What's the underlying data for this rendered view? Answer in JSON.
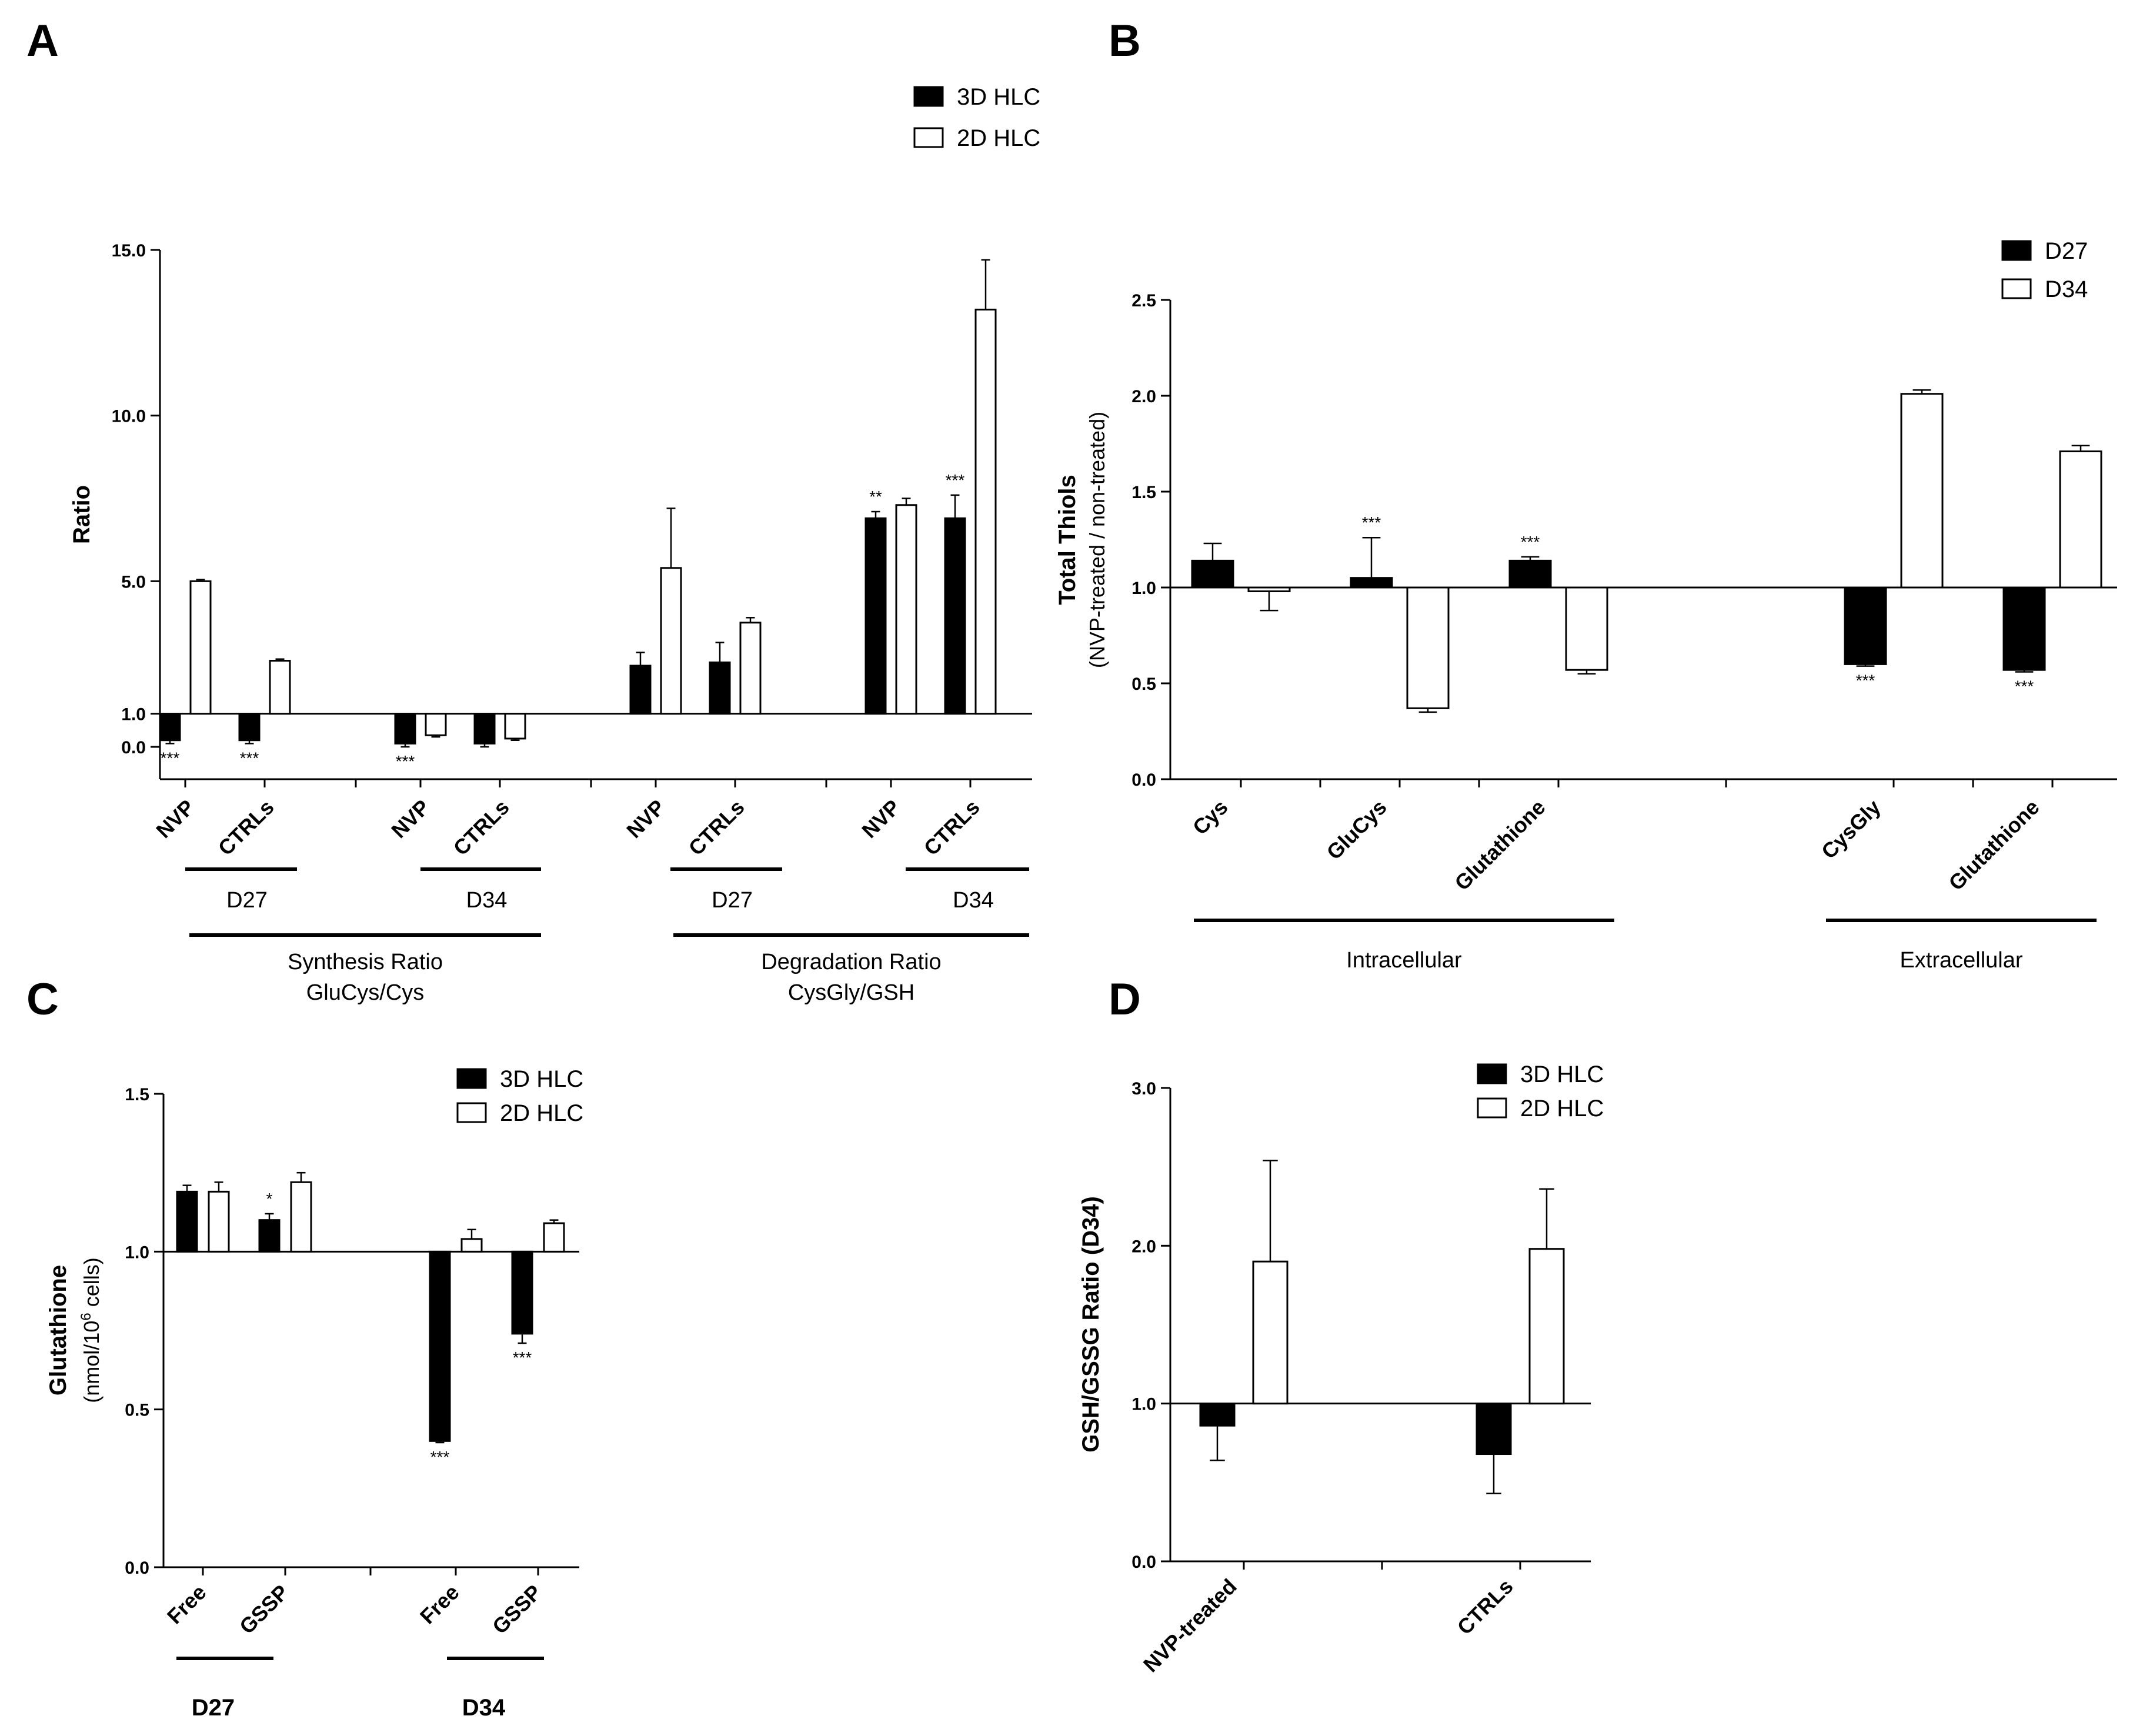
{
  "panels": [
    {
      "id": "A",
      "letter": "A",
      "ylabel": "Ratio",
      "yticks": [
        {
          "v": 0,
          "t": "0.0"
        },
        {
          "v": 1,
          "t": "1.0"
        },
        {
          "v": 5,
          "t": "5.0"
        },
        {
          "v": 10,
          "t": "10.0"
        },
        {
          "v": 15,
          "t": "15.0"
        }
      ],
      "legend": [
        "3D HLC",
        "2D HLC"
      ],
      "groups": [
        {
          "cats": [
            {
              "label": "NVP",
              "bars": [
                {
                  "v": 0.2,
                  "e": 0.1,
                  "star": "***"
                },
                {
                  "v": 5.0,
                  "e": 0.05
                }
              ]
            },
            {
              "label": "CTRLs",
              "bars": [
                {
                  "v": 0.2,
                  "e": 0.1,
                  "star": "***"
                },
                {
                  "v": 2.6,
                  "e": 0.05
                }
              ]
            }
          ]
        },
        {
          "cats": [
            {
              "label": "NVP",
              "bars": [
                {
                  "v": 0.1,
                  "e": 0.1,
                  "star": "***"
                },
                {
                  "v": 0.35,
                  "e": 0.05
                }
              ]
            },
            {
              "label": "CTRLs",
              "bars": [
                {
                  "v": 0.1,
                  "e": 0.1
                },
                {
                  "v": 0.25,
                  "e": 0.05
                }
              ]
            }
          ]
        },
        {
          "cats": [
            {
              "label": "NVP",
              "bars": [
                {
                  "v": 2.45,
                  "e": 0.4
                },
                {
                  "v": 5.4,
                  "e": 1.8
                }
              ]
            },
            {
              "label": "CTRLs",
              "bars": [
                {
                  "v": 2.55,
                  "e": 0.6
                },
                {
                  "v": 3.75,
                  "e": 0.15
                }
              ]
            }
          ]
        },
        {
          "cats": [
            {
              "label": "NVP",
              "bars": [
                {
                  "v": 6.9,
                  "e": 0.2,
                  "star": "**"
                },
                {
                  "v": 7.3,
                  "e": 0.2
                }
              ]
            },
            {
              "label": "CTRLs",
              "bars": [
                {
                  "v": 6.9,
                  "e": 0.7,
                  "star": "***"
                },
                {
                  "v": 13.2,
                  "e": 1.5
                }
              ]
            }
          ]
        }
      ],
      "subgroups": [
        "D27",
        "D34",
        "D27",
        "D34"
      ],
      "supergroups": [
        [
          "Synthesis Ratio",
          "GluCys/Cys"
        ],
        [
          "Degradation Ratio",
          "CysGly/GSH"
        ]
      ]
    },
    {
      "id": "B",
      "letter": "B",
      "ylabel": "Total Thiols",
      "ylabel2": "(NVP-treated / non-treated)",
      "yticks": [
        {
          "v": 0,
          "t": "0.0"
        },
        {
          "v": 0.5,
          "t": "0.5"
        },
        {
          "v": 1.0,
          "t": "1.0"
        },
        {
          "v": 1.5,
          "t": "1.5"
        },
        {
          "v": 2.0,
          "t": "2.0"
        },
        {
          "v": 2.5,
          "t": "2.5"
        }
      ],
      "legend": [
        "D27",
        "D34"
      ],
      "cats": [
        {
          "label": "Cys",
          "bars": [
            {
              "v": 1.14,
              "e": 0.09
            },
            {
              "v": 0.98,
              "e": 0.1
            }
          ]
        },
        {
          "label": "GluCys",
          "bars": [
            {
              "v": 1.05,
              "e": 0.21,
              "star": "***"
            },
            {
              "v": 0.37,
              "e": 0.02
            }
          ]
        },
        {
          "label": "Glutathione",
          "bars": [
            {
              "v": 1.14,
              "e": 0.02,
              "star": "***"
            },
            {
              "v": 0.57,
              "e": 0.02
            }
          ]
        },
        {
          "label": "CysGly",
          "bars": [
            {
              "v": 0.6,
              "e": 0.01,
              "star": "***"
            },
            {
              "v": 2.01,
              "e": 0.02
            }
          ]
        },
        {
          "label": "Glutathione",
          "bars": [
            {
              "v": 0.57,
              "e": 0.01,
              "star": "***"
            },
            {
              "v": 1.71,
              "e": 0.03
            }
          ]
        }
      ],
      "supergroups": [
        "Intracellular",
        "Extracellular"
      ]
    },
    {
      "id": "C",
      "letter": "C",
      "ylabel": "Glutathione",
      "ylabel2_pre": "(nmol/10",
      "ylabel2_sup": "6",
      "ylabel2_post": " cells)",
      "yticks": [
        {
          "v": 0,
          "t": "0.0"
        },
        {
          "v": 0.5,
          "t": "0.5"
        },
        {
          "v": 1.0,
          "t": "1.0"
        },
        {
          "v": 1.5,
          "t": "1.5"
        }
      ],
      "legend": [
        "3D HLC",
        "2D HLC"
      ],
      "cats": [
        {
          "label": "Free",
          "bars": [
            {
              "v": 1.19,
              "e": 0.02
            },
            {
              "v": 1.19,
              "e": 0.03
            }
          ]
        },
        {
          "label": "GSSP",
          "bars": [
            {
              "v": 1.1,
              "e": 0.02,
              "star": "*"
            },
            {
              "v": 1.22,
              "e": 0.03
            }
          ]
        },
        {
          "label": "Free",
          "bars": [
            {
              "v": 0.4,
              "e": 0.005,
              "star": "***"
            },
            {
              "v": 1.04,
              "e": 0.03
            }
          ]
        },
        {
          "label": "GSSP",
          "bars": [
            {
              "v": 0.74,
              "e": 0.03,
              "star": "***"
            },
            {
              "v": 1.09,
              "e": 0.01
            }
          ]
        }
      ],
      "subgroups": [
        "D27",
        "D34"
      ]
    },
    {
      "id": "D",
      "letter": "D",
      "ylabel": "GSH/GSSG Ratio (D34)",
      "yticks": [
        {
          "v": 0,
          "t": "0.0"
        },
        {
          "v": 1.0,
          "t": "1.0"
        },
        {
          "v": 2.0,
          "t": "2.0"
        },
        {
          "v": 3.0,
          "t": "3.0"
        }
      ],
      "legend": [
        "3D HLC",
        "2D HLC"
      ],
      "cats": [
        {
          "label": "NVP-treated",
          "bars": [
            {
              "v": 0.86,
              "e": 0.22
            },
            {
              "v": 1.9,
              "e": 0.64
            }
          ]
        },
        {
          "label": "CTRLs",
          "bars": [
            {
              "v": 0.68,
              "e": 0.25
            },
            {
              "v": 1.98,
              "e": 0.38
            }
          ]
        }
      ]
    }
  ],
  "chart_data": [
    {
      "type": "bar",
      "panel": "A",
      "ylabel": "Ratio",
      "ylim": [
        0,
        15
      ],
      "baseline": 1.0,
      "categories": [
        "NVP (Synthesis D27)",
        "CTRLs (Synthesis D27)",
        "NVP (Synthesis D34)",
        "CTRLs (Synthesis D34)",
        "NVP (Degradation D27)",
        "CTRLs (Degradation D27)",
        "NVP (Degradation D34)",
        "CTRLs (Degradation D34)"
      ],
      "series": [
        {
          "name": "3D HLC",
          "values": [
            0.2,
            0.2,
            0.1,
            0.1,
            2.45,
            2.55,
            6.9,
            6.9
          ]
        },
        {
          "name": "2D HLC",
          "values": [
            5.0,
            2.6,
            0.35,
            0.25,
            5.4,
            3.75,
            7.3,
            13.2
          ]
        }
      ]
    },
    {
      "type": "bar",
      "panel": "B",
      "ylabel": "Total Thiols (NVP-treated / non-treated)",
      "ylim": [
        0,
        2.5
      ],
      "baseline": 1.0,
      "categories": [
        "Cys",
        "GluCys",
        "Glutathione",
        "CysGly",
        "Glutathione"
      ],
      "series": [
        {
          "name": "D27",
          "values": [
            1.14,
            1.05,
            1.14,
            0.6,
            0.57
          ]
        },
        {
          "name": "D34",
          "values": [
            0.98,
            0.37,
            0.57,
            2.01,
            1.71
          ]
        }
      ]
    },
    {
      "type": "bar",
      "panel": "C",
      "ylabel": "Glutathione (nmol/10^6 cells)",
      "ylim": [
        0,
        1.5
      ],
      "baseline": 1.0,
      "categories": [
        "Free (D27)",
        "GSSP (D27)",
        "Free (D34)",
        "GSSP (D34)"
      ],
      "series": [
        {
          "name": "3D HLC",
          "values": [
            1.19,
            1.1,
            0.4,
            0.74
          ]
        },
        {
          "name": "2D HLC",
          "values": [
            1.19,
            1.22,
            1.04,
            1.09
          ]
        }
      ]
    },
    {
      "type": "bar",
      "panel": "D",
      "ylabel": "GSH/GSSG Ratio (D34)",
      "ylim": [
        0,
        3
      ],
      "baseline": 1.0,
      "categories": [
        "NVP-treated",
        "CTRLs"
      ],
      "series": [
        {
          "name": "3D HLC",
          "values": [
            0.86,
            0.68
          ]
        },
        {
          "name": "2D HLC",
          "values": [
            1.9,
            1.98
          ]
        }
      ]
    }
  ]
}
